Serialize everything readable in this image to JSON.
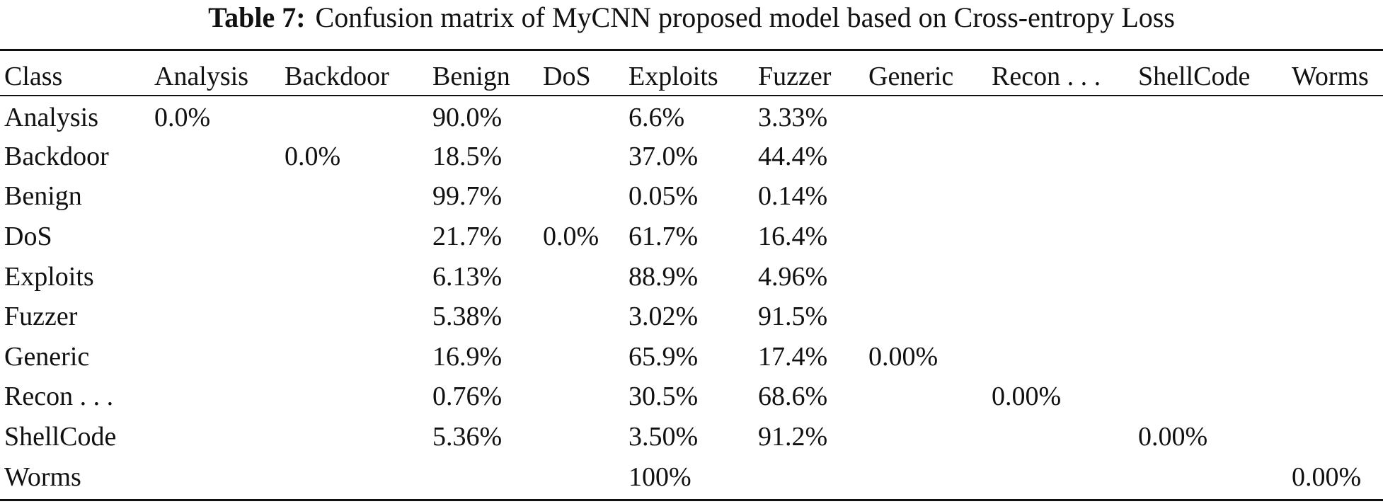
{
  "caption": {
    "label": "Table 7:",
    "text": "Confusion matrix of MyCNN proposed model based on Cross-entropy Loss"
  },
  "table": {
    "columns": [
      "Class",
      "Analysis",
      "Backdoor",
      "Benign",
      "DoS",
      "Exploits",
      "Fuzzer",
      "Generic",
      "Recon . . .",
      "ShellCode",
      "Worms"
    ],
    "rows": [
      [
        "Analysis",
        "0.0%",
        "",
        "90.0%",
        "",
        "6.6%",
        "3.33%",
        "",
        "",
        "",
        ""
      ],
      [
        "Backdoor",
        "",
        "0.0%",
        "18.5%",
        "",
        "37.0%",
        "44.4%",
        "",
        "",
        "",
        ""
      ],
      [
        "Benign",
        "",
        "",
        "99.7%",
        "",
        "0.05%",
        "0.14%",
        "",
        "",
        "",
        ""
      ],
      [
        "DoS",
        "",
        "",
        "21.7%",
        "0.0%",
        "61.7%",
        "16.4%",
        "",
        "",
        "",
        ""
      ],
      [
        "Exploits",
        "",
        "",
        "6.13%",
        "",
        "88.9%",
        "4.96%",
        "",
        "",
        "",
        ""
      ],
      [
        "Fuzzer",
        "",
        "",
        "5.38%",
        "",
        "3.02%",
        "91.5%",
        "",
        "",
        "",
        ""
      ],
      [
        "Generic",
        "",
        "",
        "16.9%",
        "",
        "65.9%",
        "17.4%",
        "0.00%",
        "",
        "",
        ""
      ],
      [
        "Recon . . .",
        "",
        "",
        "0.76%",
        "",
        "30.5%",
        "68.6%",
        "",
        "0.00%",
        "",
        ""
      ],
      [
        "ShellCode",
        "",
        "",
        "5.36%",
        "",
        "3.50%",
        "91.2%",
        "",
        "",
        "0.00%",
        ""
      ],
      [
        "Worms",
        "",
        "",
        "",
        "",
        "100%",
        "",
        "",
        "",
        "",
        "0.00%"
      ]
    ]
  }
}
